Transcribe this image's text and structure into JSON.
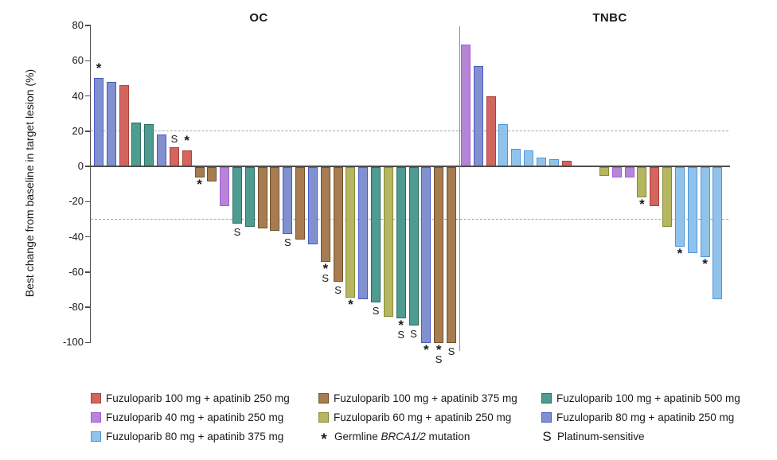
{
  "chart_data": {
    "type": "bar",
    "subtype": "waterfall",
    "title": "",
    "xlabel": "",
    "ylabel": "Best change from baseline in target lesion (%)",
    "yticks": [
      80,
      60,
      40,
      20,
      0,
      -20,
      -40,
      -60,
      -80,
      -100
    ],
    "ylim": [
      -105,
      80
    ],
    "reference_lines": [
      20,
      -30
    ],
    "grid": "off",
    "legend_position": "bottom",
    "symbol_meanings": {
      "*": "Germline BRCA1/2 mutation",
      "S": "Platinum-sensitive"
    },
    "groups": [
      {
        "name": "OC",
        "bars": [
          {
            "v": 50,
            "c": "slateblue",
            "sym": [
              "*"
            ]
          },
          {
            "v": 48,
            "c": "slateblue",
            "sym": []
          },
          {
            "v": 46,
            "c": "red",
            "sym": []
          },
          {
            "v": 25,
            "c": "teal",
            "sym": []
          },
          {
            "v": 24,
            "c": "teal",
            "sym": []
          },
          {
            "v": 18,
            "c": "slateblue",
            "sym": []
          },
          {
            "v": 11,
            "c": "red",
            "sym": [
              "S"
            ]
          },
          {
            "v": 9,
            "c": "red",
            "sym": [
              "*"
            ]
          },
          {
            "v": -6,
            "c": "brown",
            "sym": [
              "*"
            ]
          },
          {
            "v": -8,
            "c": "brown",
            "sym": []
          },
          {
            "v": -22,
            "c": "orchid",
            "sym": []
          },
          {
            "v": -32,
            "c": "teal",
            "sym": [
              "S"
            ]
          },
          {
            "v": -34,
            "c": "teal",
            "sym": []
          },
          {
            "v": -35,
            "c": "brown",
            "sym": []
          },
          {
            "v": -36,
            "c": "brown",
            "sym": []
          },
          {
            "v": -38,
            "c": "slateblue",
            "sym": [
              "S"
            ]
          },
          {
            "v": -41,
            "c": "brown",
            "sym": []
          },
          {
            "v": -44,
            "c": "slateblue",
            "sym": []
          },
          {
            "v": -54,
            "c": "brown",
            "sym": [
              "*",
              "S"
            ]
          },
          {
            "v": -65,
            "c": "brown",
            "sym": [
              "S"
            ]
          },
          {
            "v": -74,
            "c": "olive",
            "sym": [
              "*"
            ]
          },
          {
            "v": -75,
            "c": "slateblue",
            "sym": []
          },
          {
            "v": -77,
            "c": "teal",
            "sym": [
              "S"
            ]
          },
          {
            "v": -85,
            "c": "olive",
            "sym": []
          },
          {
            "v": -86,
            "c": "teal",
            "sym": [
              "*",
              "S"
            ]
          },
          {
            "v": -90,
            "c": "teal",
            "sym": [
              "S"
            ]
          },
          {
            "v": -100,
            "c": "slateblue",
            "sym": [
              "*"
            ]
          },
          {
            "v": -100,
            "c": "brown",
            "sym": [
              "*",
              "S"
            ]
          },
          {
            "v": -100,
            "c": "brown",
            "sym": [
              "S"
            ]
          }
        ]
      },
      {
        "name": "TNBC",
        "gap_after": 9,
        "gap_slots": 2,
        "bars": [
          {
            "v": 69,
            "c": "orchid",
            "sym": []
          },
          {
            "v": 57,
            "c": "slateblue",
            "sym": []
          },
          {
            "v": 40,
            "c": "red",
            "sym": []
          },
          {
            "v": 24,
            "c": "lightblue",
            "sym": []
          },
          {
            "v": 10,
            "c": "lightblue",
            "sym": []
          },
          {
            "v": 9,
            "c": "lightblue",
            "sym": []
          },
          {
            "v": 5,
            "c": "lightblue",
            "sym": []
          },
          {
            "v": 4,
            "c": "lightblue",
            "sym": []
          },
          {
            "v": 3,
            "c": "red",
            "sym": []
          },
          {
            "v": -5,
            "c": "olive",
            "sym": []
          },
          {
            "v": -6,
            "c": "orchid",
            "sym": []
          },
          {
            "v": -6,
            "c": "orchid",
            "sym": []
          },
          {
            "v": -17,
            "c": "olive",
            "sym": [
              "*"
            ]
          },
          {
            "v": -22,
            "c": "red",
            "sym": []
          },
          {
            "v": -34,
            "c": "olive",
            "sym": []
          },
          {
            "v": -45,
            "c": "lightblue",
            "sym": [
              "*"
            ]
          },
          {
            "v": -49,
            "c": "lightblue",
            "sym": []
          },
          {
            "v": -51,
            "c": "lightblue",
            "sym": [
              "*"
            ]
          },
          {
            "v": -75,
            "c": "lightblue",
            "sym": []
          }
        ]
      }
    ]
  },
  "colors": {
    "red": {
      "fill": "#D2655E",
      "border": "#AC4038"
    },
    "orchid": {
      "fill": "#B685D7",
      "border": "#A55BDB"
    },
    "lightblue": {
      "fill": "#90C3EC",
      "border": "#4E97DC"
    },
    "brown": {
      "fill": "#A67C50",
      "border": "#74502B"
    },
    "olive": {
      "fill": "#B4B75F",
      "border": "#858A33"
    },
    "teal": {
      "fill": "#4E9B91",
      "border": "#2A6D63"
    },
    "slateblue": {
      "fill": "#8191CF",
      "border": "#4C58C4"
    },
    "axis": "#4d4d4d",
    "dash": "#a3a3a3",
    "separator": "#8a8a8a"
  },
  "legend": {
    "columns": [
      {
        "items": [
          {
            "type": "swatch",
            "color": "red",
            "label": "Fuzuloparib 100 mg + apatinib 250 mg"
          },
          {
            "type": "swatch",
            "color": "orchid",
            "label": "Fuzuloparib 40 mg + apatinib 250 mg"
          },
          {
            "type": "swatch",
            "color": "lightblue",
            "label": "Fuzuloparib 80 mg + apatinib 375 mg"
          }
        ]
      },
      {
        "items": [
          {
            "type": "swatch",
            "color": "brown",
            "label": "Fuzuloparib 100 mg + apatinib 375 mg"
          },
          {
            "type": "swatch",
            "color": "olive",
            "label": "Fuzuloparib 60 mg + apatinib 250 mg"
          },
          {
            "type": "symbol",
            "symbol": "*",
            "label_pre": "Germline ",
            "label_italic": "BRCA1/2",
            "label_post": " mutation"
          }
        ]
      },
      {
        "items": [
          {
            "type": "swatch",
            "color": "teal",
            "label": "Fuzuloparib 100 mg + apatinib 500 mg"
          },
          {
            "type": "swatch",
            "color": "slateblue",
            "label": "Fuzuloparib 80 mg + apatinib 250 mg"
          },
          {
            "type": "symbol",
            "symbol": "S",
            "label": "Platinum-sensitive"
          }
        ]
      }
    ]
  }
}
